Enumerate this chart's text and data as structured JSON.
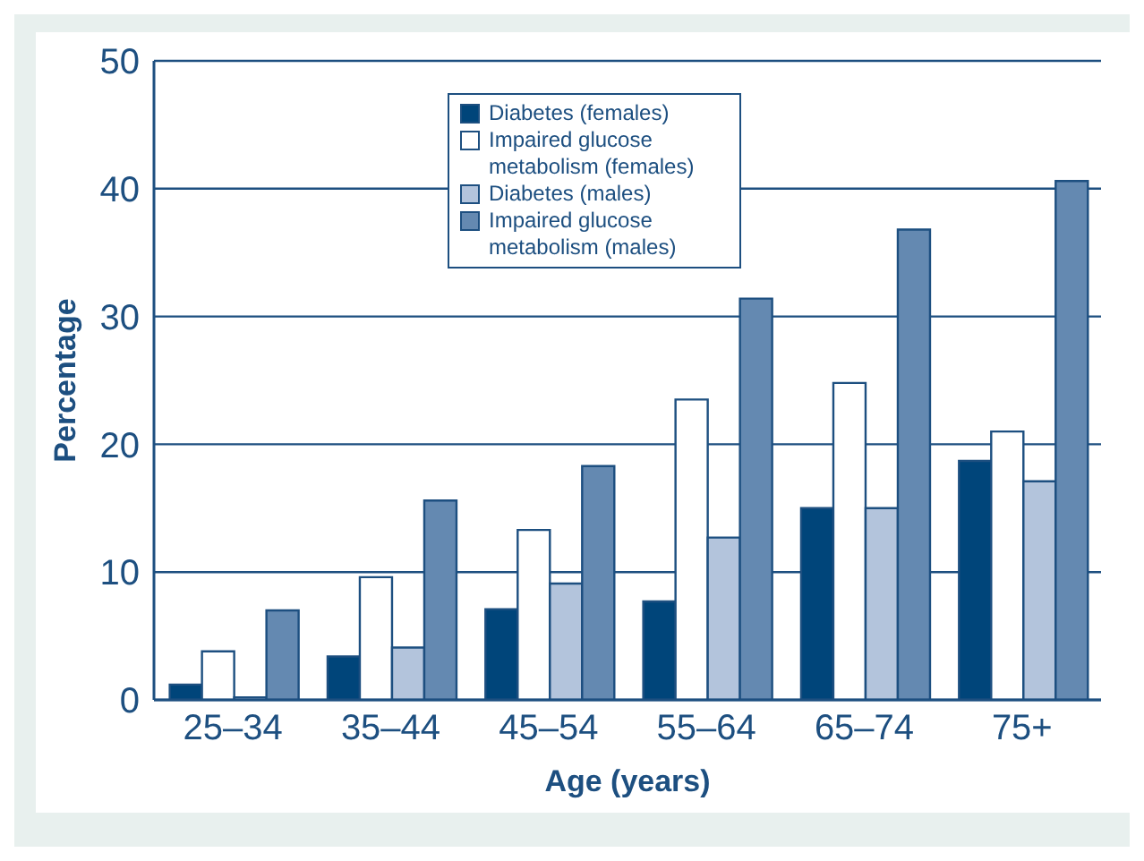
{
  "chart_data": {
    "type": "bar",
    "xlabel": "Age (years)",
    "ylabel": "Percentage",
    "categories": [
      "25–34",
      "35–44",
      "45–54",
      "55–64",
      "65–74",
      "75+"
    ],
    "series": [
      {
        "name": "Diabetes (females)",
        "color": "#00457a",
        "values": [
          1.2,
          3.4,
          7.1,
          7.7,
          15.0,
          18.7
        ]
      },
      {
        "name": "Impaired glucose metabolism (females)",
        "color": "#ffffff",
        "values": [
          3.8,
          9.6,
          13.3,
          23.5,
          24.8,
          21.0
        ]
      },
      {
        "name": "Diabetes (males)",
        "color": "#b3c4dc",
        "values": [
          0.2,
          4.1,
          9.1,
          12.7,
          15.0,
          17.1
        ]
      },
      {
        "name": "Impaired glucose metabolism (males)",
        "color": "#6489b1",
        "values": [
          7.0,
          15.6,
          18.3,
          31.4,
          36.8,
          40.6
        ]
      }
    ],
    "ylim": [
      0,
      50
    ],
    "yticks": [
      0,
      10,
      20,
      30,
      40,
      50
    ],
    "grid": "y",
    "legend": "top"
  }
}
